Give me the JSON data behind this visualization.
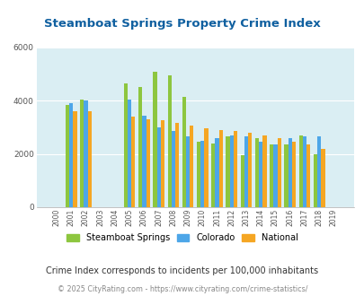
{
  "title": "Steamboat Springs Property Crime Index",
  "subtitle": "Crime Index corresponds to incidents per 100,000 inhabitants",
  "footer": "© 2025 CityRating.com - https://www.cityrating.com/crime-statistics/",
  "years": [
    2000,
    2001,
    2002,
    2003,
    2004,
    2005,
    2006,
    2007,
    2008,
    2009,
    2010,
    2011,
    2012,
    2013,
    2014,
    2015,
    2016,
    2017,
    2018,
    2019
  ],
  "steamboat": [
    0,
    3850,
    4050,
    0,
    0,
    4650,
    4500,
    5100,
    4950,
    4150,
    2450,
    2400,
    2650,
    1950,
    2600,
    2350,
    2350,
    2700,
    2000,
    0
  ],
  "colorado": [
    0,
    3900,
    4000,
    0,
    0,
    4050,
    3450,
    3000,
    2850,
    2650,
    2500,
    2600,
    2700,
    2650,
    2450,
    2350,
    2600,
    2650,
    2650,
    0
  ],
  "national": [
    0,
    3600,
    3600,
    0,
    0,
    3400,
    3300,
    3250,
    3150,
    3050,
    2950,
    2900,
    2870,
    2800,
    2700,
    2600,
    2450,
    2350,
    2200,
    0
  ],
  "bar_width": 0.26,
  "color_steamboat": "#8dc63f",
  "color_colorado": "#4da6e8",
  "color_national": "#f5a623",
  "bg_color": "#daeef3",
  "title_color": "#1060a0",
  "subtitle_color": "#333333",
  "footer_color": "#888888",
  "ylim": [
    0,
    6000
  ],
  "yticks": [
    0,
    2000,
    4000,
    6000
  ]
}
